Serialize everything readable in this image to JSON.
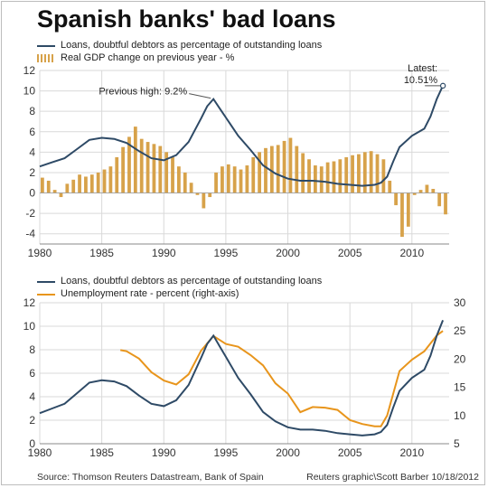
{
  "title": "Spanish banks' bad loans",
  "footer": {
    "source": "Source: Thomson Reuters Datastream, Bank of Spain",
    "credit": "Reuters graphic\\Scott Barber 10/18/2012"
  },
  "colors": {
    "loans": "#2e4a66",
    "gdp": "#d7a24a",
    "unemployment": "#e8951c",
    "grid": "#d9d9d9"
  },
  "chart_data": [
    {
      "type": "line",
      "legend": [
        "Loans, doubtful debtors as percentage of outstanding loans",
        "Real GDP change on previous year - %"
      ],
      "annotations": {
        "previous_high": "Previous high: 9.2%",
        "latest_label": "Latest:",
        "latest_value": "10.51%"
      },
      "xlim": [
        1980,
        2013
      ],
      "ylim": [
        -5,
        12
      ],
      "x_ticks": [
        1980,
        1985,
        1990,
        1995,
        2000,
        2005,
        2010
      ],
      "y_ticks": [
        -4,
        -2,
        0,
        2,
        4,
        6,
        8,
        10,
        12
      ],
      "series": [
        {
          "name": "Loans, doubtful debtors as percentage of outstanding loans",
          "type": "line",
          "x": [
            1980,
            1981,
            1982,
            1983,
            1984,
            1985,
            1986,
            1987,
            1988,
            1989,
            1990,
            1991,
            1992,
            1993,
            1993.5,
            1994,
            1994.5,
            1995,
            1996,
            1997,
            1998,
            1999,
            2000,
            2001,
            2002,
            2003,
            2004,
            2005,
            2006,
            2007,
            2007.5,
            2008,
            2008.5,
            2009,
            2010,
            2011,
            2011.5,
            2012,
            2012.5
          ],
          "y": [
            2.6,
            3.0,
            3.4,
            4.3,
            5.2,
            5.4,
            5.3,
            4.9,
            4.1,
            3.4,
            3.2,
            3.7,
            5.0,
            7.3,
            8.5,
            9.2,
            8.3,
            7.4,
            5.6,
            4.2,
            2.7,
            1.9,
            1.4,
            1.2,
            1.2,
            1.1,
            0.9,
            0.8,
            0.7,
            0.8,
            1.0,
            1.6,
            3.1,
            4.5,
            5.6,
            6.3,
            7.5,
            9.2,
            10.51
          ]
        },
        {
          "name": "Real GDP change on previous year - %",
          "type": "bar",
          "x": [
            1980,
            1980.5,
            1981,
            1981.5,
            1982,
            1982.5,
            1983,
            1983.5,
            1984,
            1984.5,
            1985,
            1985.5,
            1986,
            1986.5,
            1987,
            1987.5,
            1988,
            1988.5,
            1989,
            1989.5,
            1990,
            1990.5,
            1991,
            1991.5,
            1992,
            1992.5,
            1993,
            1993.5,
            1994,
            1994.5,
            1995,
            1995.5,
            1996,
            1996.5,
            1997,
            1997.5,
            1998,
            1998.5,
            1999,
            1999.5,
            2000,
            2000.5,
            2001,
            2001.5,
            2002,
            2002.5,
            2003,
            2003.5,
            2004,
            2004.5,
            2005,
            2005.5,
            2006,
            2006.5,
            2007,
            2007.5,
            2008,
            2008.5,
            2009,
            2009.5,
            2010,
            2010.5,
            2011,
            2011.5,
            2012,
            2012.5
          ],
          "y": [
            1.5,
            1.2,
            0.3,
            -0.4,
            0.9,
            1.3,
            1.8,
            1.6,
            1.8,
            2.0,
            2.3,
            2.6,
            3.5,
            4.5,
            5.5,
            6.5,
            5.3,
            5.0,
            4.8,
            4.6,
            4.0,
            3.5,
            2.6,
            2.0,
            1.0,
            -0.2,
            -1.5,
            -0.4,
            2.0,
            2.6,
            2.8,
            2.6,
            2.3,
            2.7,
            3.5,
            4.0,
            4.4,
            4.6,
            4.7,
            5.1,
            5.4,
            4.6,
            3.9,
            3.3,
            2.7,
            2.6,
            3.0,
            3.1,
            3.3,
            3.5,
            3.7,
            3.8,
            4.0,
            4.1,
            3.8,
            3.3,
            1.2,
            -1.2,
            -4.3,
            -3.3,
            -0.2,
            0.3,
            0.8,
            0.4,
            -1.3,
            -2.1
          ]
        }
      ]
    },
    {
      "type": "line",
      "legend": [
        "Loans, doubtful debtors as percentage of outstanding loans",
        "Unemployment rate - percent (right-axis)"
      ],
      "xlim": [
        1980,
        2013
      ],
      "ylim": [
        0,
        12
      ],
      "y2lim": [
        5,
        30
      ],
      "x_ticks": [
        1980,
        1985,
        1990,
        1995,
        2000,
        2005,
        2010
      ],
      "y_ticks": [
        0,
        2,
        4,
        6,
        8,
        10,
        12
      ],
      "y2_ticks": [
        5,
        10,
        15,
        20,
        25,
        30
      ],
      "series": [
        {
          "name": "Loans, doubtful debtors as percentage of outstanding loans",
          "axis": "left",
          "x": [
            1980,
            1981,
            1982,
            1983,
            1984,
            1985,
            1986,
            1987,
            1988,
            1989,
            1990,
            1991,
            1992,
            1993,
            1993.5,
            1994,
            1994.5,
            1995,
            1996,
            1997,
            1998,
            1999,
            2000,
            2001,
            2002,
            2003,
            2004,
            2005,
            2006,
            2007,
            2007.5,
            2008,
            2008.5,
            2009,
            2010,
            2011,
            2011.5,
            2012,
            2012.5
          ],
          "y": [
            2.6,
            3.0,
            3.4,
            4.3,
            5.2,
            5.4,
            5.3,
            4.9,
            4.1,
            3.4,
            3.2,
            3.7,
            5.0,
            7.3,
            8.5,
            9.2,
            8.3,
            7.4,
            5.6,
            4.2,
            2.7,
            1.9,
            1.4,
            1.2,
            1.2,
            1.1,
            0.9,
            0.8,
            0.7,
            0.8,
            1.0,
            1.6,
            3.1,
            4.5,
            5.6,
            6.3,
            7.5,
            9.2,
            10.51
          ]
        },
        {
          "name": "Unemployment rate - percent (right-axis)",
          "axis": "right",
          "x": [
            1986.5,
            1987,
            1988,
            1989,
            1990,
            1991,
            1992,
            1993,
            1994,
            1995,
            1996,
            1997,
            1998,
            1999,
            2000,
            2001,
            2002,
            2003,
            2004,
            2005,
            2006,
            2007,
            2007.5,
            2008,
            2009,
            2010,
            2011,
            2012,
            2012.5
          ],
          "y": [
            21.6,
            21.4,
            20.1,
            17.7,
            16.2,
            15.5,
            17.3,
            21.5,
            24.1,
            22.7,
            22.2,
            20.7,
            18.9,
            15.7,
            13.9,
            10.6,
            11.5,
            11.4,
            11.0,
            9.2,
            8.5,
            8.1,
            8.1,
            10.0,
            17.9,
            19.9,
            21.4,
            24.2,
            25.0
          ]
        }
      ]
    }
  ]
}
